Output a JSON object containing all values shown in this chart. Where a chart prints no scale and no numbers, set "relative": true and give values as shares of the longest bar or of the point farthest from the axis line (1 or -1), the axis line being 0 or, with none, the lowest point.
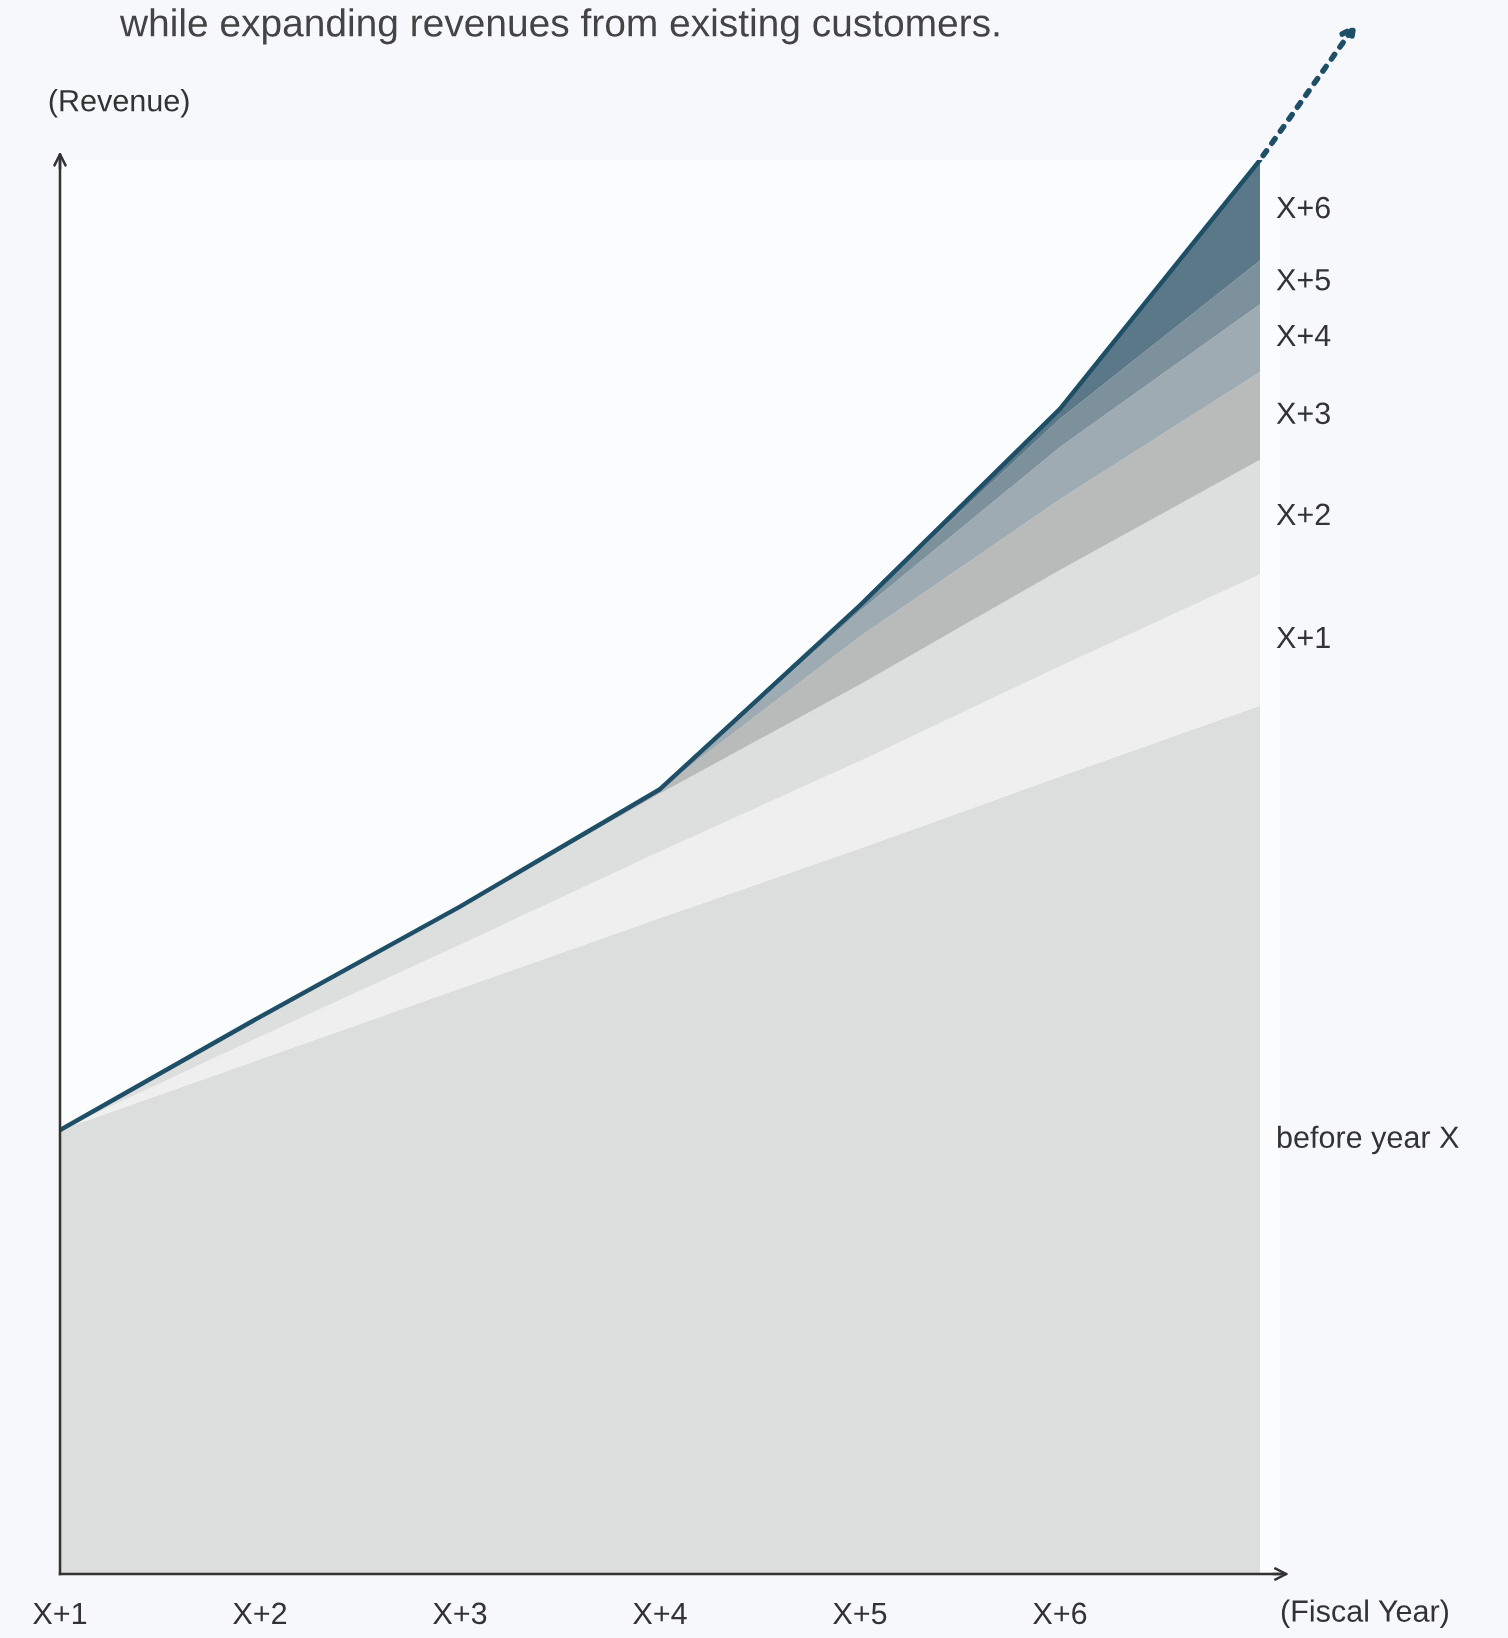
{
  "chart_data": {
    "type": "area",
    "stacked": true,
    "relative": true,
    "annotations": [
      "while expanding revenues from existing customers."
    ],
    "xlabel": "(Fiscal Year)",
    "ylabel": "(Revenue)",
    "categories": [
      "X+1",
      "X+2",
      "X+3",
      "X+4",
      "X+5",
      "X+6",
      null
    ],
    "series": [
      {
        "name": "before year X",
        "color": "#dcdddd",
        "values": [
          0.314,
          0.364,
          0.414,
          0.464,
          0.513,
          0.564,
          0.614
        ]
      },
      {
        "name": "X+1",
        "color": "#efefef",
        "values": [
          0,
          0.016,
          0.031,
          0.047,
          0.062,
          0.078,
          0.093
        ]
      },
      {
        "name": "X+2",
        "color": "#dddede",
        "values": [
          0,
          0.014,
          0.027,
          0.041,
          0.054,
          0.068,
          0.081
        ]
      },
      {
        "name": "X+3",
        "color": "#b9baba",
        "values": [
          0,
          0,
          0,
          0.003,
          0.034,
          0.05,
          0.062
        ]
      },
      {
        "name": "X+4",
        "color": "#9eabb3",
        "values": [
          0,
          0,
          0,
          0,
          0.018,
          0.037,
          0.048
        ]
      },
      {
        "name": "X+5",
        "color": "#7d919d",
        "values": [
          0,
          0,
          0,
          0,
          0.004,
          0.02,
          0.031
        ]
      },
      {
        "name": "X+6",
        "color": "#5a7888",
        "values": [
          0,
          0,
          0,
          0,
          0,
          0.007,
          0.071
        ]
      }
    ],
    "legend": false,
    "grid": false
  }
}
